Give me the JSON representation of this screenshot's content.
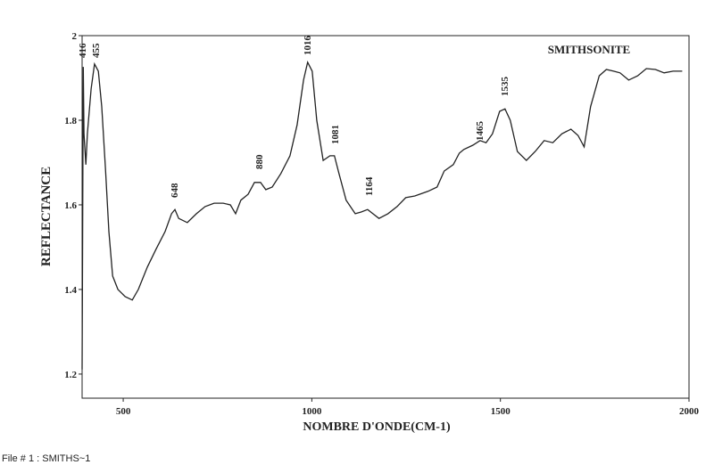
{
  "chart_data": {
    "type": "line",
    "title": "SMITHSONITE",
    "x_label": "NOMBRE D'ONDE(CM-1)",
    "y_label": "REFLECTANCE",
    "annotations": [
      "416",
      "455",
      "648",
      "880",
      "1016",
      "1081",
      "1164",
      "1465",
      "1535"
    ],
    "x": [
      391,
      394,
      396,
      401,
      405,
      415,
      424,
      434,
      443,
      453,
      462,
      472,
      486,
      505,
      524,
      540,
      564,
      587,
      611,
      628,
      637,
      647,
      670,
      694,
      717,
      741,
      765,
      784,
      798,
      812,
      831,
      848,
      864,
      878,
      895,
      918,
      942,
      961,
      978,
      989,
      1001,
      1013,
      1030,
      1048,
      1060,
      1072,
      1091,
      1115,
      1131,
      1148,
      1162,
      1178,
      1202,
      1226,
      1249,
      1273,
      1308,
      1332,
      1351,
      1375,
      1391,
      1403,
      1427,
      1446,
      1462,
      1479,
      1498,
      1512,
      1526,
      1545,
      1569,
      1592,
      1616,
      1639,
      1663,
      1687,
      1706,
      1722,
      1739,
      1762,
      1781,
      1800,
      1817,
      1840,
      1864,
      1887,
      1911,
      1934,
      1958,
      1982
    ],
    "values": [
      1.211,
      1.926,
      1.768,
      1.695,
      1.768,
      1.874,
      1.933,
      1.916,
      1.832,
      1.684,
      1.537,
      1.432,
      1.4,
      1.383,
      1.375,
      1.4,
      1.453,
      1.495,
      1.537,
      1.579,
      1.589,
      1.568,
      1.558,
      1.579,
      1.596,
      1.604,
      1.604,
      1.6,
      1.579,
      1.611,
      1.625,
      1.653,
      1.653,
      1.636,
      1.642,
      1.674,
      1.716,
      1.789,
      1.895,
      1.937,
      1.916,
      1.8,
      1.705,
      1.716,
      1.716,
      1.674,
      1.611,
      1.579,
      1.583,
      1.589,
      1.579,
      1.568,
      1.579,
      1.596,
      1.617,
      1.621,
      1.632,
      1.642,
      1.68,
      1.695,
      1.722,
      1.731,
      1.741,
      1.752,
      1.747,
      1.768,
      1.821,
      1.827,
      1.8,
      1.726,
      1.705,
      1.726,
      1.752,
      1.747,
      1.768,
      1.779,
      1.764,
      1.737,
      1.832,
      1.905,
      1.92,
      1.916,
      1.912,
      1.895,
      1.905,
      1.922,
      1.92,
      1.912,
      1.916,
      1.916
    ],
    "color": "#222222",
    "xlim": [
      391,
      2000
    ],
    "xticks": [
      500,
      1000,
      1500,
      2000
    ],
    "ylim": [
      1.143,
      2
    ],
    "yticks": [
      1.2,
      1.4,
      1.6,
      1.8,
      2
    ],
    "grid": false
  },
  "footer": "File # 1 : SMITHS~1"
}
